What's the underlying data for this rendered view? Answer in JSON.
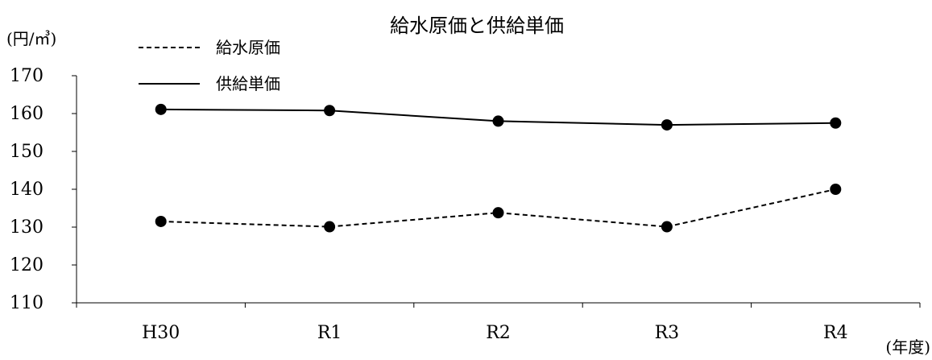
{
  "chart_data": {
    "type": "line",
    "title": "給水原価と供給単価",
    "ylabel": "(円/㎥)",
    "xlabel": "(年度)",
    "categories": [
      "H30",
      "R1",
      "R2",
      "R3",
      "R4"
    ],
    "ylim": [
      110,
      170
    ],
    "yticks": [
      110,
      120,
      130,
      140,
      150,
      160,
      170
    ],
    "grid": false,
    "legend_position": "top-left",
    "series": [
      {
        "name": "給水原価",
        "line_style": "dashed",
        "color": "#000000",
        "values": [
          131.5,
          130.1,
          133.8,
          130.1,
          140.0
        ]
      },
      {
        "name": "供給単価",
        "line_style": "solid",
        "color": "#000000",
        "values": [
          161.1,
          160.8,
          158.0,
          157.0,
          157.5
        ]
      }
    ]
  }
}
